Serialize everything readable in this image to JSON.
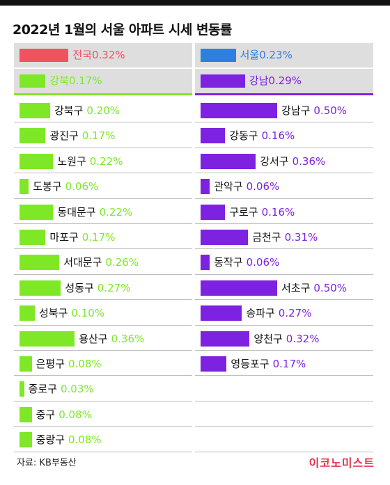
{
  "title": "2022년 1월의 서울 아파트 시세 변동률",
  "source": "자료: KB부동산",
  "brand": "이코노미스트",
  "colors": {
    "national": "#f0535f",
    "seoul": "#2f7fe0",
    "gangbuk": "#7ee826",
    "gangnam": "#7d22e0",
    "header_bg": "#dedede",
    "brand": "#e8304a"
  },
  "chart_data": [
    {
      "type": "bar",
      "title": "2022년 1월의 서울 아파트 시세 변동률",
      "unit": "%",
      "summary": [
        {
          "name": "전국",
          "value": 0.32,
          "label": "0.32%"
        },
        {
          "name": "강북",
          "value": 0.17,
          "label": "0.17%"
        }
      ],
      "categories": [
        "강북구",
        "광진구",
        "노원구",
        "도봉구",
        "동대문구",
        "마포구",
        "서대문구",
        "성동구",
        "성북구",
        "용산구",
        "은평구",
        "종로구",
        "중구",
        "중랑구"
      ],
      "values": [
        0.2,
        0.17,
        0.22,
        0.06,
        0.22,
        0.17,
        0.26,
        0.27,
        0.1,
        0.36,
        0.08,
        0.03,
        0.08,
        0.08
      ],
      "labels": [
        "0.20%",
        "0.17%",
        "0.22%",
        "0.06%",
        "0.22%",
        "0.17%",
        "0.26%",
        "0.27%",
        "0.10%",
        "0.36%",
        "0.08%",
        "0.03%",
        "0.08%",
        "0.08%"
      ]
    },
    {
      "type": "bar",
      "unit": "%",
      "summary": [
        {
          "name": "서울",
          "value": 0.23,
          "label": "0.23%"
        },
        {
          "name": "강남",
          "value": 0.29,
          "label": "0.29%"
        }
      ],
      "categories": [
        "강남구",
        "강동구",
        "강서구",
        "관악구",
        "구로구",
        "금천구",
        "동작구",
        "서초구",
        "송파구",
        "양천구",
        "영등포구"
      ],
      "values": [
        0.5,
        0.16,
        0.36,
        0.06,
        0.16,
        0.31,
        0.06,
        0.5,
        0.27,
        0.32,
        0.17
      ],
      "labels": [
        "0.50%",
        "0.16%",
        "0.36%",
        "0.06%",
        "0.16%",
        "0.31%",
        "0.06%",
        "0.50%",
        "0.27%",
        "0.32%",
        "0.17%"
      ]
    }
  ]
}
